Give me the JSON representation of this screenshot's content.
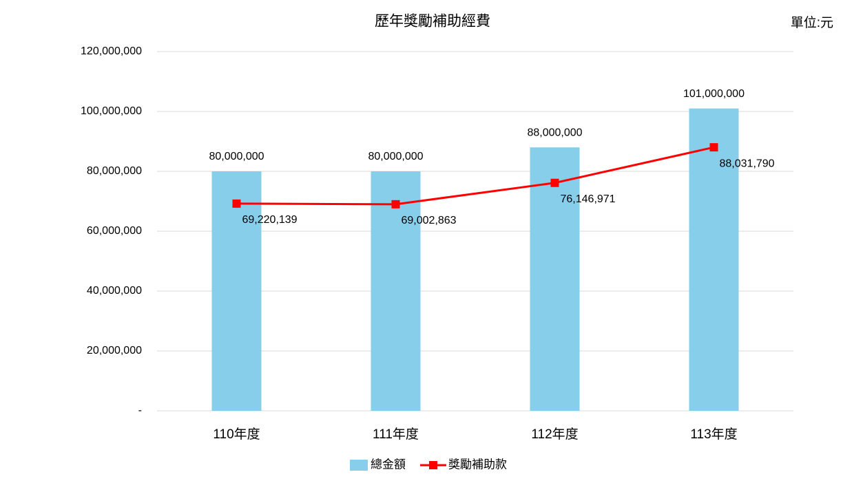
{
  "chart_data": {
    "type": "bar",
    "title": "歷年獎勵補助經費",
    "annotation": "單位:元",
    "categories": [
      "110年度",
      "111年度",
      "112年度",
      "113年度"
    ],
    "series": [
      {
        "name": "總金額",
        "type": "bar",
        "color": "#87ceeb",
        "values": [
          80000000,
          80000000,
          88000000,
          101000000
        ],
        "value_labels": [
          "80,000,000",
          "80,000,000",
          "88,000,000",
          "101,000,000"
        ]
      },
      {
        "name": "獎勵補助款",
        "type": "line",
        "color": "#ff0000",
        "values": [
          69220139,
          69002863,
          76146971,
          88031790
        ],
        "value_labels": [
          "69,220,139",
          "69,002,863",
          "76,146,971",
          "88,031,790"
        ]
      }
    ],
    "ylim": [
      0,
      120000000
    ],
    "yticks": [
      {
        "value": 0,
        "label": "-"
      },
      {
        "value": 20000000,
        "label": "20,000,000"
      },
      {
        "value": 40000000,
        "label": "40,000,000"
      },
      {
        "value": 60000000,
        "label": "60,000,000"
      },
      {
        "value": 80000000,
        "label": "80,000,000"
      },
      {
        "value": 100000000,
        "label": "100,000,000"
      },
      {
        "value": 120000000,
        "label": "120,000,000"
      }
    ],
    "grid": true,
    "legend": "bottom"
  }
}
